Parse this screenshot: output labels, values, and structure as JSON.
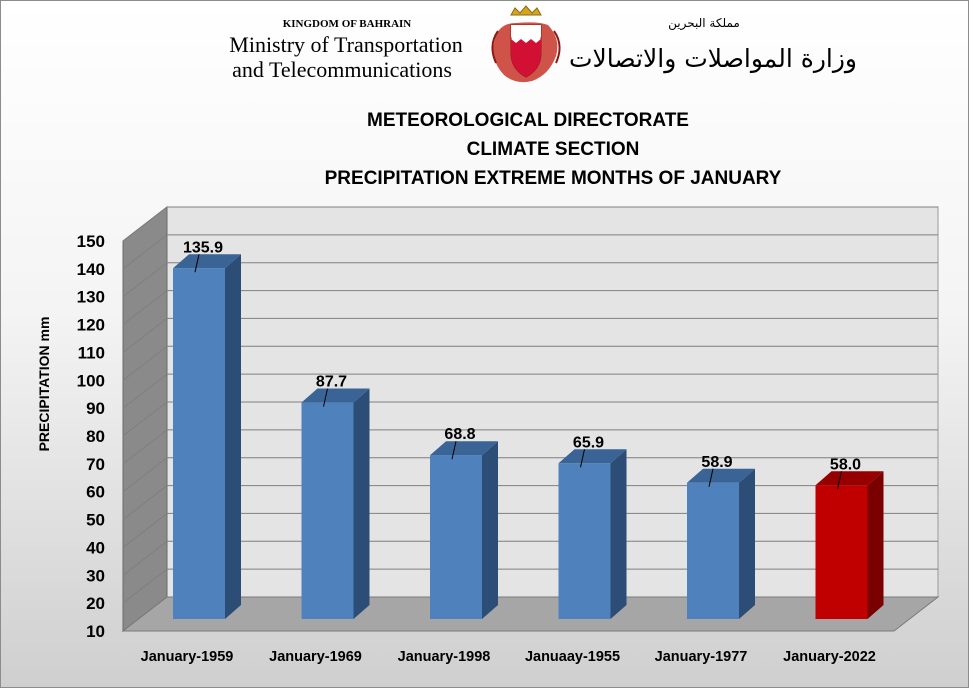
{
  "header": {
    "kingdom": "KINGDOM OF BAHRAIN",
    "ministry_line1": "Ministry of Transportation",
    "ministry_line2": "and Telecommunications",
    "arabic_kingdom": "مملكة البحرين",
    "arabic_ministry": "وزارة المواصلات والاتصالات"
  },
  "colors": {
    "bar": "#4f81bd",
    "bar_side": "#2c4d75",
    "bar_top": "#3a6496",
    "highlight": "#c00000",
    "highlight_side": "#7a0000",
    "highlight_top": "#960000",
    "back_wall": "#e4e4e4",
    "side_wall": "#8a8a8a",
    "floor": "#a6a6a6",
    "grid": "#7f7f7f"
  },
  "chart_data": {
    "type": "bar",
    "title": [
      "METEOROLOGICAL DIRECTORATE",
      "CLIMATE SECTION",
      "PRECIPITATION EXTREME MONTHS OF JANUARY"
    ],
    "xlabel": "",
    "ylabel": "PRECIPITATION mm",
    "ylim": [
      10,
      150
    ],
    "yticks": [
      10,
      20,
      30,
      40,
      50,
      60,
      70,
      80,
      90,
      100,
      110,
      120,
      130,
      140,
      150
    ],
    "categories": [
      "January-1959",
      "January-1969",
      "January-1998",
      "Januaay-1955",
      "January-1977",
      "January-2022"
    ],
    "values": [
      135.9,
      87.7,
      68.8,
      65.9,
      58.9,
      58.0
    ],
    "labels": [
      "135.9",
      "87.7",
      "68.8",
      "65.9",
      "58.9",
      "58.0"
    ],
    "highlight_index": 5,
    "grid": true,
    "legend": "none"
  }
}
